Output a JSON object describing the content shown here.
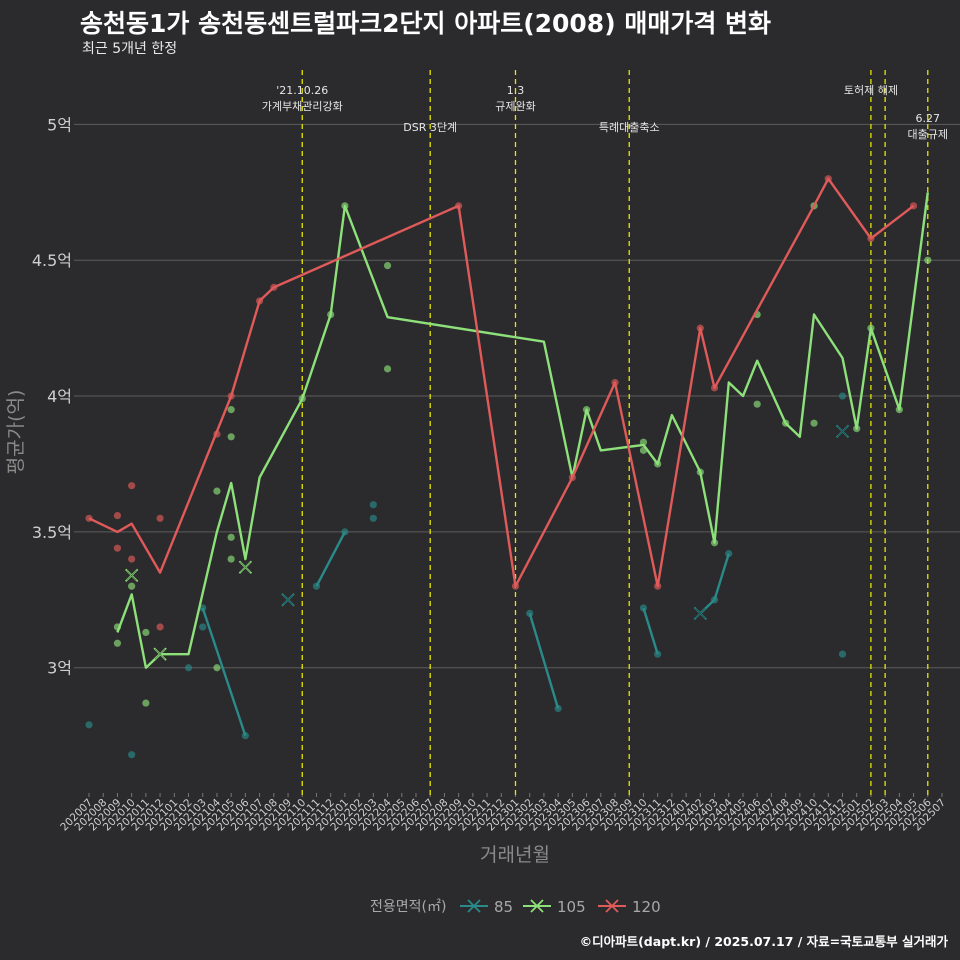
{
  "chart_data": {
    "type": "line",
    "title": "송천동1가 송천동센트럴파크2단지 아파트(2008) 매매가격 변화",
    "subtitle": "최근 5개년 한정",
    "xlabel": "거래년월",
    "ylabel": "평균가(억)",
    "caption": "©디아파트(dapt.kr) / 2025.07.17 / 자료=국토교통부 실거래가",
    "ylim": [
      2.55,
      5.2
    ],
    "yticks": [
      3,
      3.5,
      4,
      4.5,
      5
    ],
    "ytick_labels": [
      "3억",
      "3.5억",
      "4억",
      "4.5억",
      "5억"
    ],
    "categories": [
      "202007",
      "202008",
      "202009",
      "202010",
      "202011",
      "202012",
      "202101",
      "202102",
      "202103",
      "202104",
      "202105",
      "202106",
      "202107",
      "202108",
      "202109",
      "202110",
      "202111",
      "202112",
      "202201",
      "202202",
      "202203",
      "202204",
      "202205",
      "202206",
      "202207",
      "202208",
      "202209",
      "202210",
      "202211",
      "202212",
      "202301",
      "202302",
      "202303",
      "202304",
      "202305",
      "202306",
      "202307",
      "202308",
      "202309",
      "202310",
      "202311",
      "202312",
      "202401",
      "202402",
      "202403",
      "202404",
      "202405",
      "202406",
      "202407",
      "202408",
      "202409",
      "202410",
      "202411",
      "202412",
      "202501",
      "202502",
      "202503",
      "202504",
      "202505",
      "202506",
      "202507"
    ],
    "legend": {
      "title": "전용면적(㎡)",
      "placement": "bottom",
      "entries": [
        {
          "name": "85",
          "color": "#2a8a8a"
        },
        {
          "name": "105",
          "color": "#8de07a"
        },
        {
          "name": "120",
          "color": "#e05a5a"
        }
      ]
    },
    "events": [
      {
        "x": "202110",
        "lines": [
          "'21.10.26",
          "가계부채관리강화"
        ],
        "pos": "top"
      },
      {
        "x": "202207",
        "lines": [
          "DSR 3단계"
        ],
        "pos": "mid"
      },
      {
        "x": "202301",
        "lines": [
          "1.3",
          "규제완화"
        ],
        "pos": "top"
      },
      {
        "x": "202309",
        "lines": [
          "특례대출축소"
        ],
        "pos": "mid"
      },
      {
        "x": "202502",
        "lines": [
          "토허제 해제"
        ],
        "pos": "top"
      },
      {
        "x": "202503",
        "lines": [],
        "pos": "top"
      },
      {
        "x": "202506",
        "lines": [
          "6.27",
          "대출규제"
        ],
        "pos": "low"
      }
    ],
    "series": [
      {
        "name": "85",
        "color": "#2a8a8a",
        "line": [
          [
            "202103",
            3.22
          ],
          [
            "202106",
            2.75
          ],
          null,
          [
            "202111",
            3.3
          ],
          [
            "202201",
            3.5
          ],
          null,
          [
            "202302",
            3.2
          ],
          [
            "202304",
            2.85
          ],
          null,
          [
            "202310",
            3.22
          ],
          [
            "202311",
            3.05
          ],
          null,
          [
            "202402",
            3.2
          ],
          [
            "202403",
            3.25
          ],
          [
            "202404",
            3.42
          ],
          null,
          [
            "202412",
            3.87
          ]
        ],
        "points": [
          [
            "202007",
            2.79
          ],
          [
            "202010",
            2.68
          ],
          [
            "202102",
            3.0
          ],
          [
            "202103",
            3.15
          ],
          [
            "202103",
            3.22
          ],
          [
            "202106",
            2.75
          ],
          [
            "202111",
            3.3
          ],
          [
            "202201",
            3.5
          ],
          [
            "202203",
            3.6
          ],
          [
            "202203",
            3.55
          ],
          [
            "202302",
            3.2
          ],
          [
            "202304",
            2.85
          ],
          [
            "202310",
            3.22
          ],
          [
            "202311",
            3.05
          ],
          [
            "202403",
            3.25
          ],
          [
            "202404",
            3.42
          ],
          [
            "202412",
            3.05
          ],
          [
            "202412",
            4.0
          ]
        ],
        "crosses": [
          [
            "202109",
            3.25
          ],
          [
            "202402",
            3.2
          ],
          [
            "202412",
            3.87
          ]
        ]
      },
      {
        "name": "105",
        "color": "#8de07a",
        "line": [
          [
            "202009",
            3.13
          ],
          [
            "202010",
            3.27
          ],
          [
            "202011",
            3.0
          ],
          [
            "202012",
            3.05
          ],
          [
            "202102",
            3.05
          ],
          [
            "202104",
            3.5
          ],
          [
            "202105",
            3.68
          ],
          [
            "202106",
            3.4
          ],
          [
            "202107",
            3.7
          ],
          [
            "202110",
            3.99
          ],
          [
            "202112",
            4.3
          ],
          [
            "202201",
            4.7
          ],
          [
            "202204",
            4.29
          ],
          [
            "202303",
            4.2
          ],
          [
            "202305",
            3.7
          ],
          [
            "202306",
            3.95
          ],
          [
            "202307",
            3.8
          ],
          [
            "202310",
            3.82
          ],
          [
            "202311",
            3.75
          ],
          [
            "202312",
            3.93
          ],
          [
            "202402",
            3.72
          ],
          [
            "202403",
            3.46
          ],
          [
            "202404",
            4.05
          ],
          [
            "202405",
            4.0
          ],
          [
            "202406",
            4.13
          ],
          [
            "202408",
            3.9
          ],
          [
            "202409",
            3.85
          ],
          [
            "202410",
            4.3
          ],
          [
            "202412",
            4.14
          ],
          [
            "202501",
            3.88
          ],
          [
            "202502",
            4.25
          ],
          [
            "202504",
            3.95
          ],
          [
            "202506",
            4.75
          ]
        ],
        "points": [
          [
            "202009",
            3.15
          ],
          [
            "202009",
            3.09
          ],
          [
            "202010",
            3.3
          ],
          [
            "202011",
            3.13
          ],
          [
            "202011",
            2.87
          ],
          [
            "202104",
            3.65
          ],
          [
            "202104",
            3.0
          ],
          [
            "202105",
            3.95
          ],
          [
            "202105",
            3.85
          ],
          [
            "202105",
            3.48
          ],
          [
            "202105",
            3.4
          ],
          [
            "202110",
            3.99
          ],
          [
            "202112",
            4.3
          ],
          [
            "202201",
            4.7
          ],
          [
            "202204",
            4.48
          ],
          [
            "202204",
            4.1
          ],
          [
            "202306",
            3.95
          ],
          [
            "202310",
            3.83
          ],
          [
            "202310",
            3.8
          ],
          [
            "202311",
            3.75
          ],
          [
            "202402",
            3.72
          ],
          [
            "202403",
            3.46
          ],
          [
            "202406",
            4.3
          ],
          [
            "202406",
            3.97
          ],
          [
            "202408",
            3.9
          ],
          [
            "202410",
            3.9
          ],
          [
            "202410",
            4.7
          ],
          [
            "202501",
            3.88
          ],
          [
            "202502",
            4.25
          ],
          [
            "202504",
            3.95
          ],
          [
            "202506",
            4.5
          ]
        ],
        "crosses": [
          [
            "202010",
            3.34
          ],
          [
            "202012",
            3.05
          ],
          [
            "202106",
            3.37
          ]
        ]
      },
      {
        "name": "120",
        "color": "#e05a5a",
        "line": [
          [
            "202007",
            3.55
          ],
          [
            "202009",
            3.5
          ],
          [
            "202010",
            3.53
          ],
          [
            "202012",
            3.35
          ],
          [
            "202105",
            4.0
          ],
          [
            "202107",
            4.35
          ],
          [
            "202108",
            4.4
          ],
          [
            "202209",
            4.7
          ],
          [
            "202301",
            3.3
          ],
          [
            "202305",
            3.7
          ],
          [
            "202308",
            4.05
          ],
          [
            "202311",
            3.3
          ],
          [
            "202402",
            4.25
          ],
          [
            "202403",
            4.03
          ],
          [
            "202410",
            4.7
          ],
          [
            "202411",
            4.8
          ],
          [
            "202502",
            4.58
          ],
          [
            "202505",
            4.7
          ]
        ],
        "points": [
          [
            "202007",
            3.55
          ],
          [
            "202009",
            3.56
          ],
          [
            "202009",
            3.44
          ],
          [
            "202010",
            3.67
          ],
          [
            "202010",
            3.4
          ],
          [
            "202012",
            3.55
          ],
          [
            "202012",
            3.15
          ],
          [
            "202104",
            3.86
          ],
          [
            "202105",
            4.0
          ],
          [
            "202107",
            4.35
          ],
          [
            "202108",
            4.4
          ],
          [
            "202209",
            4.7
          ],
          [
            "202301",
            3.3
          ],
          [
            "202305",
            3.7
          ],
          [
            "202308",
            4.05
          ],
          [
            "202311",
            3.3
          ],
          [
            "202402",
            4.25
          ],
          [
            "202403",
            4.03
          ],
          [
            "202411",
            4.8
          ],
          [
            "202502",
            4.58
          ],
          [
            "202505",
            4.7
          ]
        ],
        "crosses": []
      }
    ]
  }
}
